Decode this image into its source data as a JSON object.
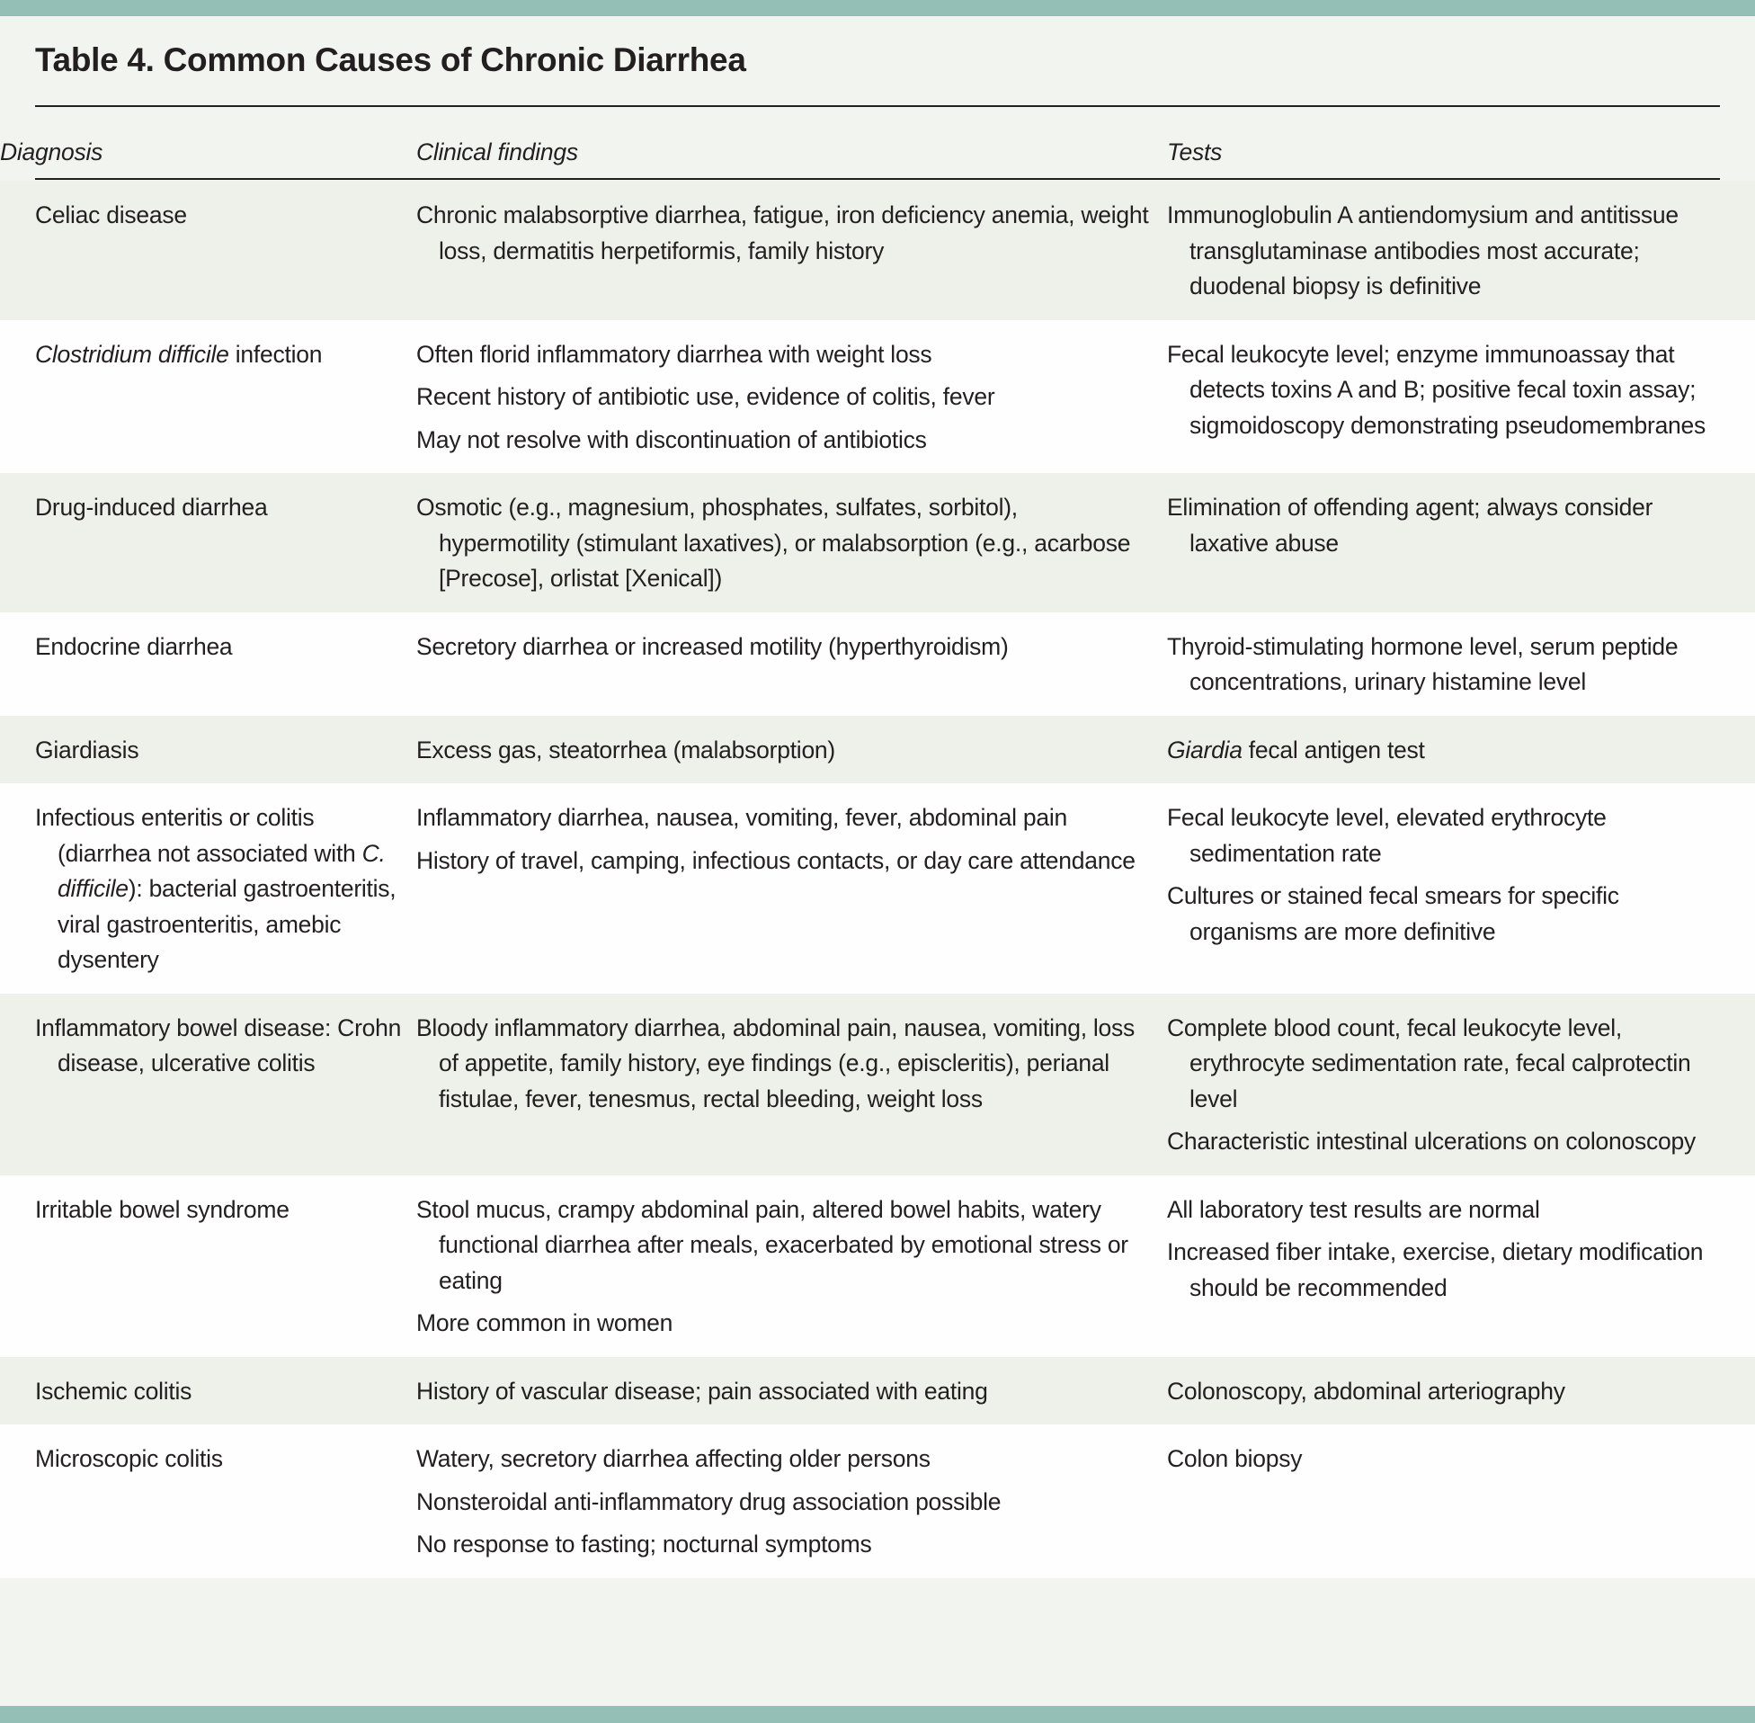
{
  "title": "Table 4. Common Causes of Chronic Diarrhea",
  "colors": {
    "band": "#93bfb7",
    "shaded_row": "#eef1ea",
    "text": "#231f20"
  },
  "headers": [
    "Diagnosis",
    "Clinical findings",
    "Tests"
  ],
  "rows": [
    {
      "diagnosis": [
        [
          {
            "t": "Celiac disease"
          }
        ]
      ],
      "findings": [
        [
          {
            "t": "Chronic malabsorptive diarrhea, fatigue, iron deficiency anemia, weight loss, dermatitis herpetiformis, family history"
          }
        ]
      ],
      "tests": [
        [
          {
            "t": "Immunoglobulin A antiendomysium and antitissue transglutaminase antibodies most accurate; duodenal biopsy is definitive"
          }
        ]
      ]
    },
    {
      "diagnosis": [
        [
          {
            "t": "Clostridium difficile",
            "i": true
          },
          {
            "t": " infection"
          }
        ]
      ],
      "findings": [
        [
          {
            "t": "Often florid inflammatory diarrhea with weight loss"
          }
        ],
        [
          {
            "t": "Recent history of antibiotic use, evidence of colitis, fever"
          }
        ],
        [
          {
            "t": "May not resolve with discontinuation of antibiotics"
          }
        ]
      ],
      "tests": [
        [
          {
            "t": "Fecal leukocyte level; enzyme immunoassay that detects toxins A and B; positive fecal toxin assay; sigmoidoscopy demonstrating pseudomembranes"
          }
        ]
      ]
    },
    {
      "diagnosis": [
        [
          {
            "t": "Drug-induced diarrhea"
          }
        ]
      ],
      "findings": [
        [
          {
            "t": "Osmotic (e.g., magnesium, phosphates, sulfates, sorbitol), hypermotility (stimulant laxatives), or malabsorption (e.g., acarbose [Precose], orlistat [Xenical])"
          }
        ]
      ],
      "tests": [
        [
          {
            "t": "Elimination of offending agent; always consider laxative abuse"
          }
        ]
      ]
    },
    {
      "diagnosis": [
        [
          {
            "t": "Endocrine diarrhea"
          }
        ]
      ],
      "findings": [
        [
          {
            "t": "Secretory diarrhea or increased motility (hyperthyroidism)"
          }
        ]
      ],
      "tests": [
        [
          {
            "t": "Thyroid-stimulating hormone level, serum peptide concentrations, urinary histamine level"
          }
        ]
      ]
    },
    {
      "diagnosis": [
        [
          {
            "t": "Giardiasis"
          }
        ]
      ],
      "findings": [
        [
          {
            "t": "Excess gas, steatorrhea (malabsorption)"
          }
        ]
      ],
      "tests": [
        [
          {
            "t": "Giardia",
            "i": true
          },
          {
            "t": " fecal antigen test"
          }
        ]
      ]
    },
    {
      "diagnosis": [
        [
          {
            "t": "Infectious enteritis or colitis (diarrhea not associated with "
          },
          {
            "t": "C. difficile",
            "i": true
          },
          {
            "t": "): bacterial gastroenteritis, viral gastroenteritis, amebic dysentery"
          }
        ]
      ],
      "findings": [
        [
          {
            "t": "Inflammatory diarrhea, nausea, vomiting, fever, abdominal pain"
          }
        ],
        [
          {
            "t": "History of travel, camping, infectious contacts, or day care attendance"
          }
        ]
      ],
      "tests": [
        [
          {
            "t": "Fecal leukocyte level, elevated erythrocyte sedimentation rate"
          }
        ],
        [
          {
            "t": "Cultures or stained fecal smears for specific organisms are more definitive"
          }
        ]
      ]
    },
    {
      "diagnosis": [
        [
          {
            "t": "Inflammatory bowel disease: Crohn disease, ulcerative colitis"
          }
        ]
      ],
      "findings": [
        [
          {
            "t": "Bloody inflammatory diarrhea, abdominal pain, nausea, vomiting, loss of appetite, family history, eye findings (e.g., episcleritis), perianal fistulae, fever, tenesmus, rectal bleeding, weight loss"
          }
        ]
      ],
      "tests": [
        [
          {
            "t": "Complete blood count, fecal leukocyte level, erythrocyte sedimentation rate, fecal calprotectin level"
          }
        ],
        [
          {
            "t": "Characteristic intestinal ulcerations on colonoscopy"
          }
        ]
      ]
    },
    {
      "diagnosis": [
        [
          {
            "t": "Irritable bowel syndrome"
          }
        ]
      ],
      "findings": [
        [
          {
            "t": "Stool mucus, crampy abdominal pain, altered bowel habits, watery functional diarrhea after meals, exacerbated by emotional stress or eating"
          }
        ],
        [
          {
            "t": "More common in women"
          }
        ]
      ],
      "tests": [
        [
          {
            "t": "All laboratory test results are normal"
          }
        ],
        [
          {
            "t": "Increased fiber intake, exercise, dietary modification should be recommended"
          }
        ]
      ]
    },
    {
      "diagnosis": [
        [
          {
            "t": "Ischemic colitis"
          }
        ]
      ],
      "findings": [
        [
          {
            "t": "History of vascular disease; pain associated with eating"
          }
        ]
      ],
      "tests": [
        [
          {
            "t": "Colonoscopy, abdominal arteriography"
          }
        ]
      ]
    },
    {
      "diagnosis": [
        [
          {
            "t": "Microscopic colitis"
          }
        ]
      ],
      "findings": [
        [
          {
            "t": "Watery, secretory diarrhea affecting older persons"
          }
        ],
        [
          {
            "t": "Nonsteroidal anti-inflammatory drug association possible"
          }
        ],
        [
          {
            "t": "No response to fasting; nocturnal symptoms"
          }
        ]
      ],
      "tests": [
        [
          {
            "t": "Colon biopsy"
          }
        ]
      ]
    }
  ]
}
